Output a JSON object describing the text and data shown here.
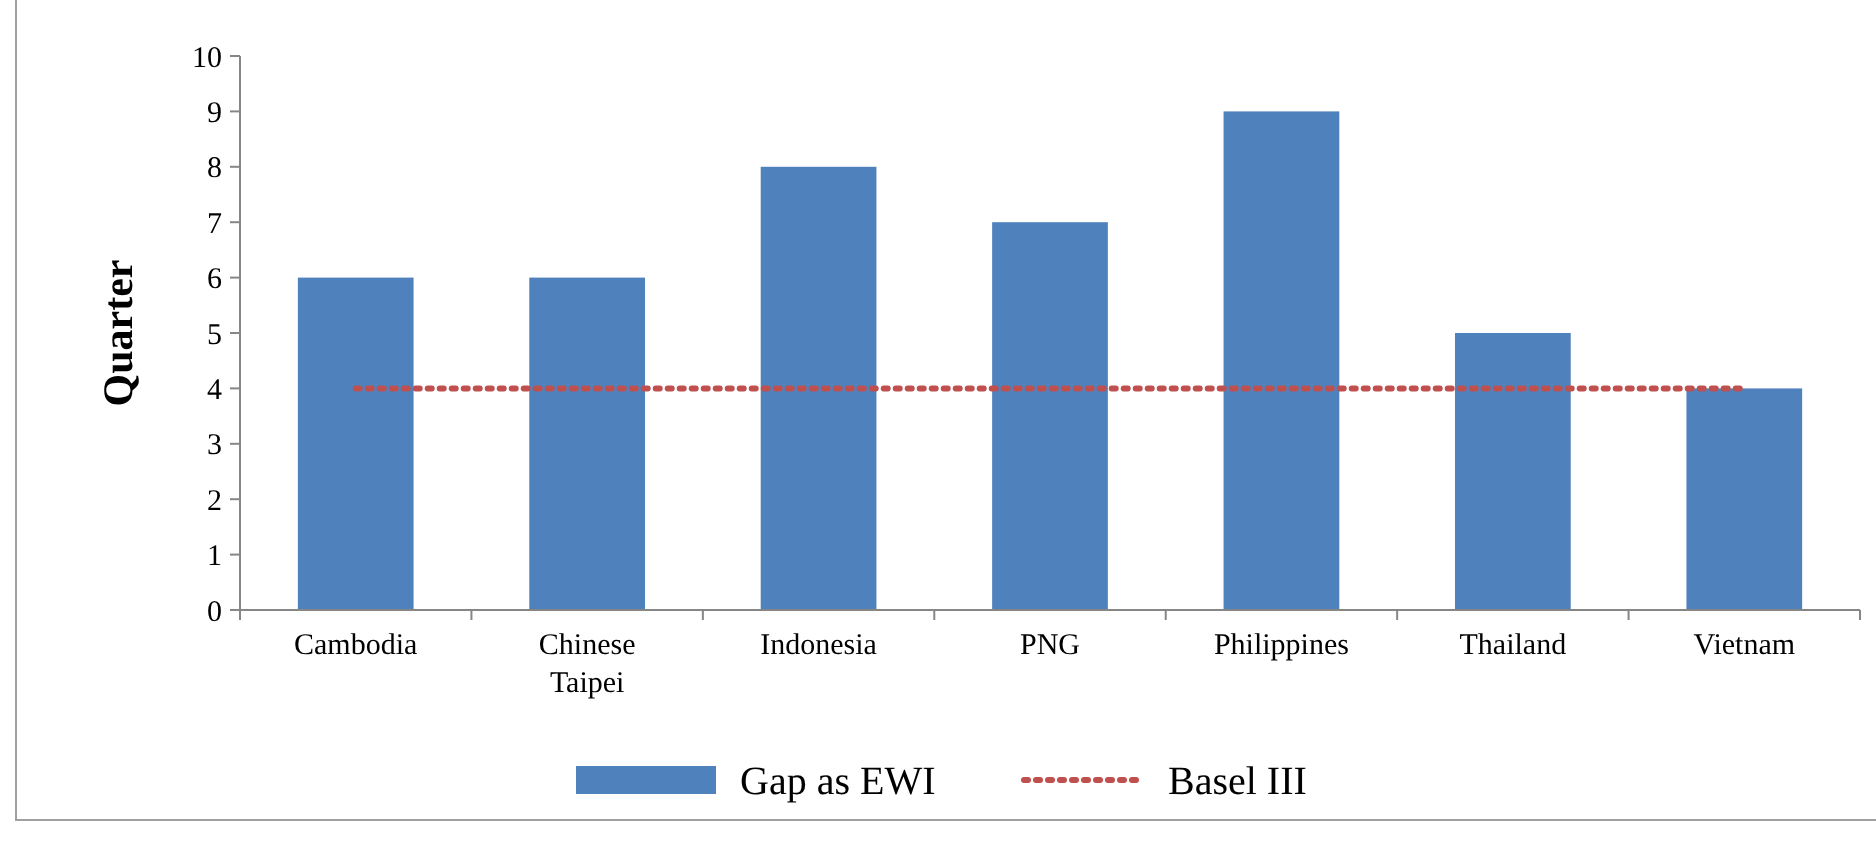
{
  "chart_data": {
    "type": "bar",
    "ylabel": "Quarter",
    "categories": [
      "Cambodia",
      "Chinese Taipei",
      "Indonesia",
      "PNG",
      "Philippines",
      "Thailand",
      "Vietnam"
    ],
    "series": [
      {
        "name": "Gap as EWI",
        "color": "#4f81bd",
        "values": [
          6,
          6,
          8,
          7,
          9,
          5,
          4
        ]
      },
      {
        "name": "Basel III",
        "type": "line",
        "color": "#c0504d",
        "line_style": "dotted",
        "marker": "none",
        "values": [
          4,
          4,
          4,
          4,
          4,
          4,
          4
        ]
      }
    ],
    "ylim": [
      0,
      10
    ],
    "yticks": [
      0,
      1,
      2,
      3,
      4,
      5,
      6,
      7,
      8,
      9,
      10
    ],
    "grid": false,
    "legend": "bottom"
  }
}
